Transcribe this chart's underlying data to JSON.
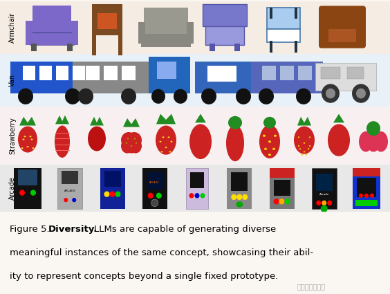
{
  "figure_width": 5.64,
  "figure_height": 4.25,
  "dpi": 100,
  "background_color": "#faf6f2",
  "row_bg_colors": [
    "#f5ede4",
    "#e8f0f8",
    "#f5f0f0",
    "#e8e8e8"
  ],
  "row_labels": [
    "Armchair",
    "Van",
    "Strawberry",
    "Arcade"
  ],
  "label_fontsize": 7.0,
  "caption_fontsize": 9.5,
  "watermark": "新智元"
}
